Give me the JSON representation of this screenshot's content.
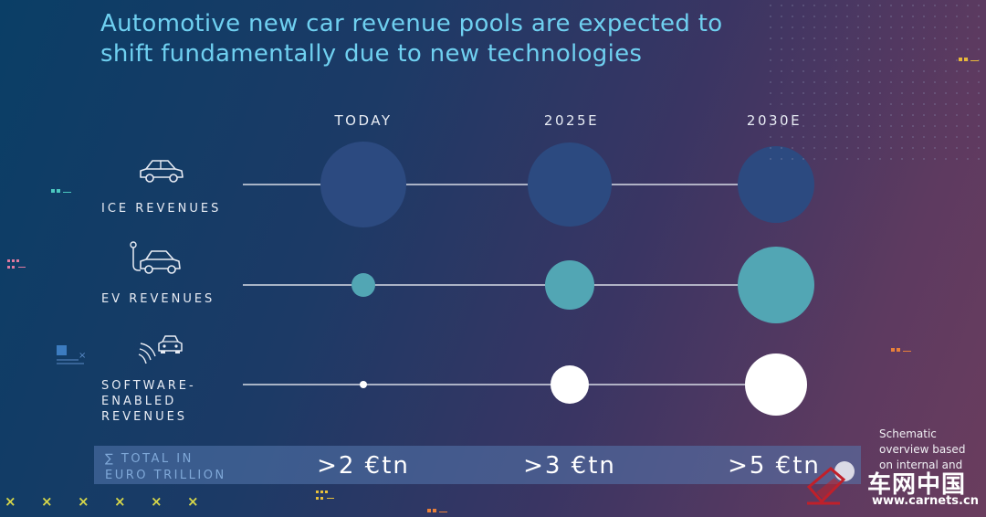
{
  "title_lines": [
    "Automotive new car revenue pools are expected to",
    "shift fundamentally due to new technologies"
  ],
  "colors": {
    "title": "#6fd0f0",
    "ice": "#2c4a80",
    "ev": "#52a6b4",
    "software": "#ffffff",
    "line": "#d8dce6",
    "totals_bar": "#5678af"
  },
  "chart_data": {
    "type": "bubble",
    "x_categories": [
      "TODAY",
      "2025E",
      "2030E"
    ],
    "series": [
      {
        "name_lines": [
          "ICE REVENUES"
        ],
        "icon": "car-icon",
        "relative_size": [
          47,
          46,
          42
        ]
      },
      {
        "name_lines": [
          "EV REVENUES"
        ],
        "icon": "ev-charging-car-icon",
        "relative_size": [
          13,
          27,
          42
        ]
      },
      {
        "name_lines": [
          "SOFTWARE-",
          "ENABLED",
          "REVENUES"
        ],
        "icon": "connected-car-icon",
        "relative_size": [
          4,
          21,
          34
        ]
      }
    ],
    "totals": {
      "label_lines": [
        "∑ TOTAL IN",
        "EURO TRILLION"
      ],
      "values": [
        ">2 €tn",
        ">3 €tn",
        ">5 €tn"
      ]
    }
  },
  "note_lines": [
    "Schematic",
    "overview based",
    "on internal and"
  ],
  "watermark": {
    "text": "车网中国",
    "url": "www.carnets.cn"
  },
  "decorations": {
    "x_marks": [
      "×",
      "×",
      "×",
      "×",
      "×",
      "×"
    ]
  }
}
